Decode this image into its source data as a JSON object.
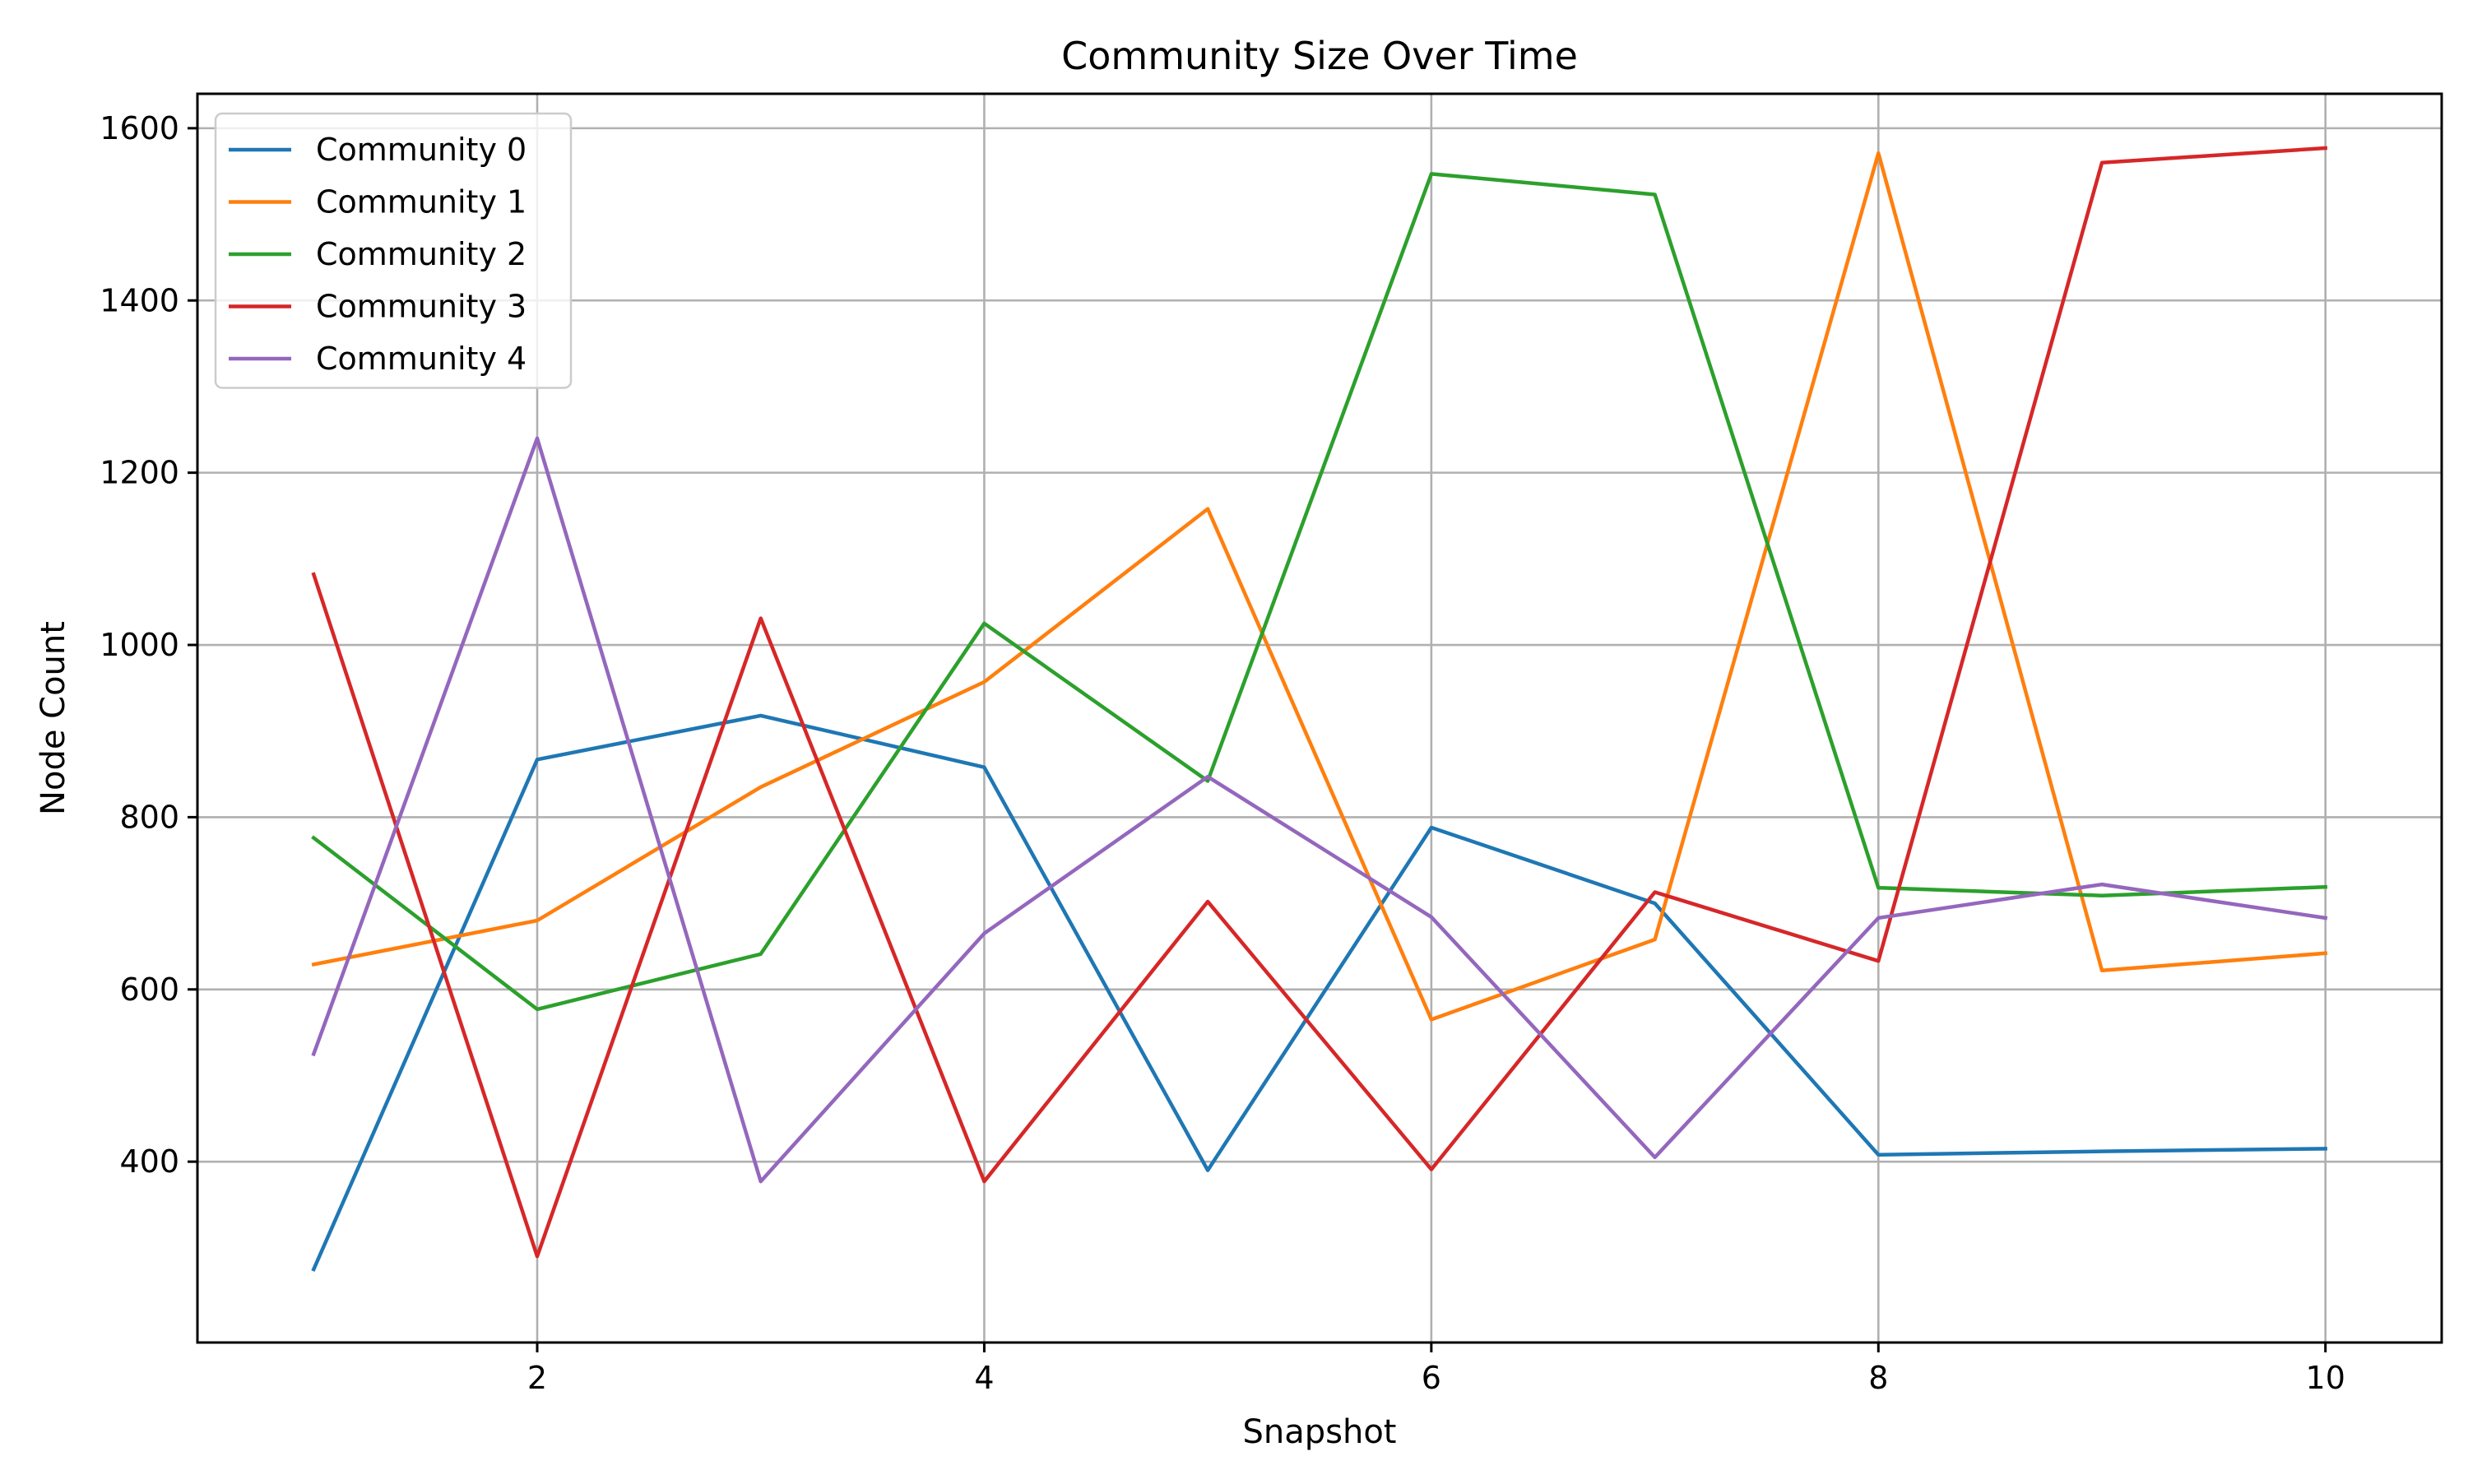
{
  "chart_data": {
    "type": "line",
    "title": "Community Size Over Time",
    "xlabel": "Snapshot",
    "ylabel": "Node Count",
    "x": [
      1,
      2,
      3,
      4,
      5,
      6,
      7,
      8,
      9,
      10
    ],
    "xlim": [
      0.48,
      10.52
    ],
    "ylim": [
      190,
      1640
    ],
    "xticks": [
      2,
      4,
      6,
      8,
      10
    ],
    "yticks": [
      400,
      600,
      800,
      1000,
      1200,
      1400,
      1600
    ],
    "grid": true,
    "legend_position": "top-left",
    "series": [
      {
        "name": "Community 0",
        "color": "#1f77b4",
        "values": [
          275,
          867,
          918,
          858,
          390,
          788,
          700,
          408,
          412,
          415
        ]
      },
      {
        "name": "Community 1",
        "color": "#ff7f0e",
        "values": [
          629,
          680,
          835,
          957,
          1158,
          565,
          658,
          1571,
          622,
          642
        ]
      },
      {
        "name": "Community 2",
        "color": "#2ca02c",
        "values": [
          776,
          577,
          641,
          1025,
          842,
          1547,
          1523,
          718,
          709,
          719
        ]
      },
      {
        "name": "Community 3",
        "color": "#d62728",
        "values": [
          1082,
          290,
          1031,
          377,
          702,
          391,
          713,
          633,
          1560,
          1577
        ]
      },
      {
        "name": "Community 4",
        "color": "#9467bd",
        "values": [
          525,
          1240,
          377,
          665,
          847,
          684,
          405,
          683,
          722,
          683
        ]
      }
    ]
  }
}
